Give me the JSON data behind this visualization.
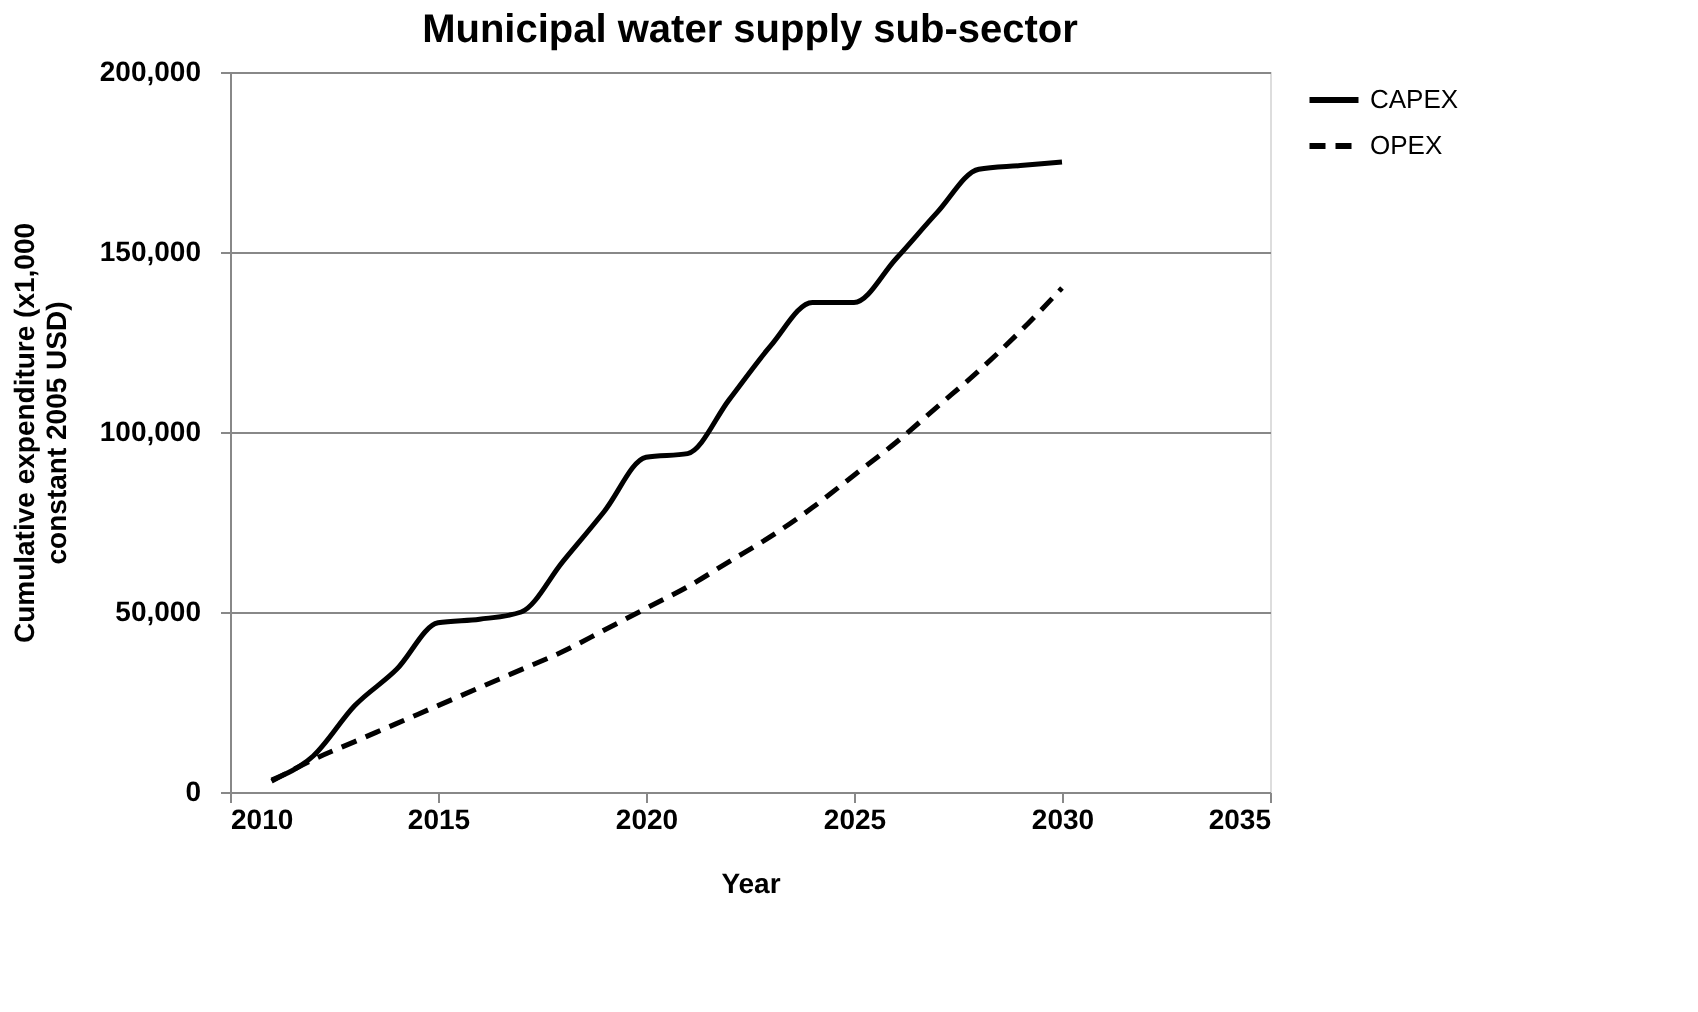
{
  "chart_data": {
    "type": "line",
    "title": "Municipal water supply sub-sector",
    "xlabel": "Year",
    "ylabel": "Cumulative expenditure (x1,000\nconstant 2005 USD)",
    "x": [
      2011,
      2012,
      2013,
      2014,
      2015,
      2016,
      2017,
      2018,
      2019,
      2020,
      2021,
      2022,
      2023,
      2024,
      2025,
      2026,
      2027,
      2028,
      2029,
      2030
    ],
    "series": [
      {
        "name": "CAPEX",
        "color": "#000000",
        "line_style": "solid",
        "values": [
          3300,
          10000,
          24000,
          34000,
          47000,
          48000,
          50000,
          64000,
          78000,
          93000,
          94000,
          109000,
          124000,
          136000,
          136000,
          148000,
          161000,
          173000,
          174000,
          175000
        ]
      },
      {
        "name": "OPEX",
        "color": "#000000",
        "line_style": "dashed",
        "values": [
          3000,
          9000,
          14000,
          19000,
          24000,
          29000,
          34000,
          39000,
          45000,
          51000,
          57000,
          64000,
          71000,
          79000,
          88000,
          97000,
          107000,
          117000,
          128000,
          140000
        ]
      }
    ],
    "xlim": [
      2010,
      2035
    ],
    "xticks": [
      2010,
      2015,
      2020,
      2025,
      2030,
      2035
    ],
    "ylim": [
      0,
      200000
    ],
    "yticks": [
      0,
      {
        "value": 50000,
        "label": "50,000"
      },
      {
        "value": 100000,
        "label": "100,000"
      },
      {
        "value": 150000,
        "label": "150,000"
      },
      {
        "value": 200000,
        "label": "200,000"
      }
    ],
    "grid": "y",
    "legend": "right",
    "marker": "none"
  }
}
